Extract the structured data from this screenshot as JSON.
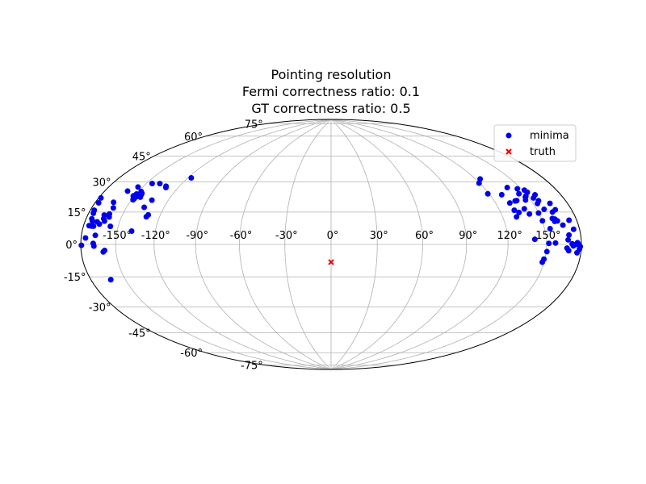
{
  "chart_data": {
    "type": "scatter",
    "projection": "hammer",
    "title_lines": [
      "Pointing resolution",
      "Fermi correctness ratio: 0.1",
      "GT correctness ratio: 0.5"
    ],
    "lon_ticks": [
      -150,
      -120,
      -90,
      -60,
      -30,
      0,
      30,
      60,
      90,
      120,
      150
    ],
    "lon_tick_labels": [
      "-150°",
      "-120°",
      "-90°",
      "-60°",
      "-30°",
      "0°",
      "30°",
      "60°",
      "90°",
      "120°",
      "150°"
    ],
    "lat_ticks": [
      -75,
      -60,
      -45,
      -30,
      -15,
      0,
      15,
      30,
      45,
      60,
      75
    ],
    "lat_tick_labels": [
      "-75°",
      "-60°",
      "-45°",
      "-30°",
      "-15°",
      "0°",
      "15°",
      "30°",
      "45°",
      "60°",
      "75°"
    ],
    "grid": true,
    "legend_position": "top-right",
    "series": [
      {
        "name": "minima",
        "marker": "circle",
        "color": "#0000ee",
        "points": [
          [
            -177.9,
            22.0
          ],
          [
            -176.4,
            16.1
          ],
          [
            -175.7,
            14.7
          ],
          [
            -174.8,
            12.1
          ],
          [
            -175.0,
            8.8
          ],
          [
            -172.8,
            8.7
          ],
          [
            -170.9,
            8.7
          ],
          [
            -169.0,
            10.9
          ],
          [
            -168.3,
            -0.8
          ],
          [
            -167.6,
            4.4
          ],
          [
            -166.4,
            9.9
          ],
          [
            -165.3,
            14.4
          ],
          [
            -163.8,
            21.0
          ],
          [
            -164.4,
            12.7
          ],
          [
            -162.9,
            11.5
          ],
          [
            -161.3,
            15.2
          ],
          [
            -160.8,
            18.3
          ],
          [
            -160.3,
            13.7
          ],
          [
            -159.6,
            27.3
          ],
          [
            -160.6,
            -3.7
          ],
          [
            -159.3,
            -3.0
          ],
          [
            -154.0,
            30.1
          ],
          [
            -151.1,
            25.4
          ],
          [
            -150.7,
            25.6
          ],
          [
            -149.7,
            26.6
          ],
          [
            -148.8,
            23.5
          ],
          [
            -148.1,
            25.1
          ],
          [
            -147.7,
            28.2
          ],
          [
            -145.8,
            27.4
          ],
          [
            -145.3,
            26.7
          ],
          [
            -144.4,
            25.3
          ],
          [
            -138.2,
            7.1
          ],
          [
            -135.6,
            20.2
          ],
          [
            -133.1,
            24.4
          ],
          [
            -131.0,
            32.7
          ],
          [
            -130.1,
            32.0
          ],
          [
            -179.4,
            -0.4
          ],
          [
            -173.5,
            11.1
          ],
          [
            -168.9,
            0.5
          ],
          [
            -162.4,
            -17.6
          ],
          [
            -145.0,
            33.0
          ],
          [
            -117.1,
            39.1
          ],
          [
            -138.4,
            33.6
          ],
          [
            -130.2,
            15.2
          ],
          [
            -129.3,
            16.3
          ],
          [
            -176.0,
            3.0
          ],
          [
            -148.6,
            24.1
          ],
          [
            -176.7,
            19.7
          ],
          [
            -156.4,
            9.1
          ],
          [
            118.9,
            29.1
          ],
          [
            119.4,
            35.6
          ],
          [
            123.9,
            37.8
          ],
          [
            129.5,
            27.8
          ],
          [
            130.7,
            15.1
          ],
          [
            131.4,
            18.8
          ],
          [
            131.2,
            22.9
          ],
          [
            134.2,
            17.4
          ],
          [
            136.6,
            23.7
          ],
          [
            138.1,
            23.8
          ],
          [
            139.2,
            31.2
          ],
          [
            140.0,
            19.1
          ],
          [
            142.0,
            16.2
          ],
          [
            144.3,
            27.2
          ],
          [
            145.7,
            23.6
          ],
          [
            146.7,
            29.8
          ],
          [
            147.4,
            25.1
          ],
          [
            148.5,
            25.6
          ],
          [
            149.8,
            16.3
          ],
          [
            150.2,
            12.2
          ],
          [
            151.6,
            28.6
          ],
          [
            152.4,
            27.3
          ],
          [
            153.6,
            21.1
          ],
          [
            153.6,
            24.1
          ],
          [
            154.5,
            8.0
          ],
          [
            156.1,
            17.9
          ],
          [
            157.1,
            25.5
          ],
          [
            159.2,
            13.0
          ],
          [
            160.3,
            11.5
          ],
          [
            161.1,
            12.6
          ],
          [
            161.9,
            16.1
          ],
          [
            162.7,
            11.6
          ],
          [
            164.3,
            20.4
          ],
          [
            165.5,
            17.1
          ],
          [
            166.2,
            9.4
          ],
          [
            167.3,
            -1.8
          ],
          [
            168.3,
            2.2
          ],
          [
            168.9,
            -3.0
          ],
          [
            169.5,
            4.5
          ],
          [
            171.7,
            0.3
          ],
          [
            172.8,
            -0.7
          ],
          [
            173.1,
            11.5
          ],
          [
            174.6,
            7.1
          ],
          [
            175.4,
            0.0
          ],
          [
            176.5,
            -3.9
          ],
          [
            177.3,
            0.1
          ],
          [
            178.4,
            -2.2
          ],
          [
            179.0,
            -1.0
          ],
          [
            176.5,
            0.8
          ],
          [
            149.2,
            -7.6
          ],
          [
            148.5,
            -9.2
          ],
          [
            140.7,
            2.7
          ],
          [
            150.6,
            -3.7
          ],
          [
            157.4,
            0.7
          ],
          [
            151.9,
            0.5
          ],
          [
            156.1,
            22.4
          ]
        ]
      },
      {
        "name": "truth",
        "marker": "x",
        "color": "#ee0000",
        "points": [
          [
            0,
            -11.5
          ]
        ]
      }
    ]
  }
}
